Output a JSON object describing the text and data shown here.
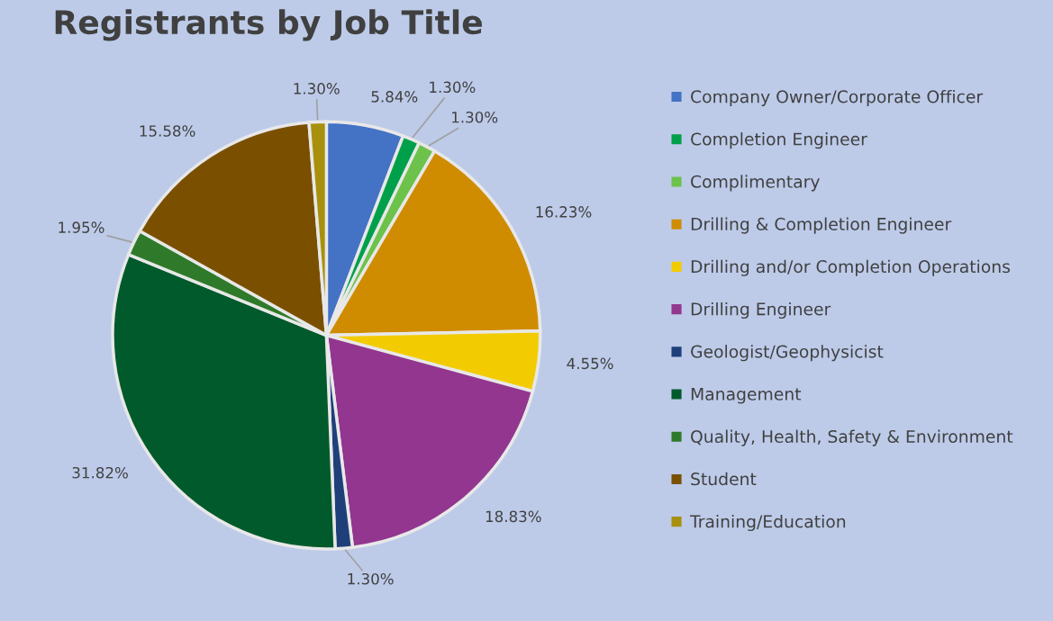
{
  "chart_data": {
    "type": "pie",
    "title": "Registrants by Job Title",
    "categories": [
      "Company Owner/Corporate Officer",
      "Completion Engineer",
      "Complimentary",
      "Drilling & Completion Engineer",
      "Drilling and/or Completion Operations",
      "Drilling Engineer",
      "Geologist/Geophysicist",
      "Management",
      "Quality, Health, Safety & Environment",
      "Student",
      "Training/Education"
    ],
    "values": [
      5.84,
      1.3,
      1.3,
      16.23,
      4.55,
      18.83,
      1.3,
      31.82,
      1.95,
      15.58,
      1.3
    ],
    "value_labels": [
      "5.84%",
      "1.30%",
      "1.30%",
      "16.23%",
      "4.55%",
      "18.83%",
      "1.30%",
      "31.82%",
      "1.95%",
      "15.58%",
      "1.30%"
    ],
    "colors": [
      "#4472c4",
      "#00a04a",
      "#6cc24a",
      "#d08c00",
      "#f2cc00",
      "#92368f",
      "#1f3f7a",
      "#005a2b",
      "#2f7a2a",
      "#7a5000",
      "#a8900c"
    ],
    "legend": "right",
    "marker": "square"
  }
}
